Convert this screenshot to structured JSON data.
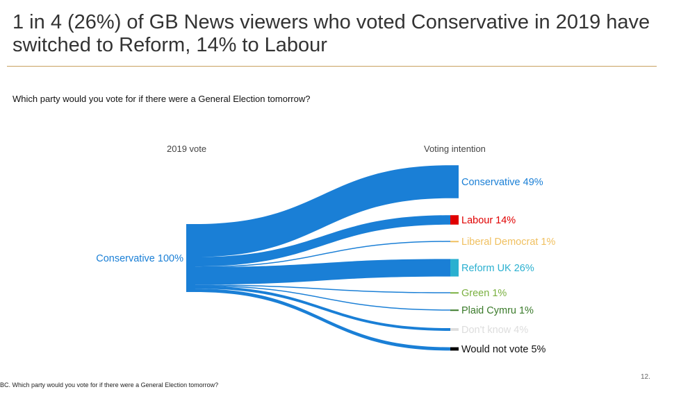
{
  "title": "1 in 4 (26%) of GB News viewers who voted Conservative in 2019 have switched to Reform, 14% to Labour",
  "question": "Which party would you vote for if there were a General Election tomorrow?",
  "footnote": "BC. Which party would you vote for if there were a General Election tomorrow?",
  "page_number": "12.",
  "chart_data": {
    "type": "sankey",
    "left_header": "2019 vote",
    "right_header": "Voting intention",
    "flow_color": "#1a7fd6",
    "source": {
      "label": "Conservative 100%",
      "name": "Conservative",
      "value": 100,
      "color": "#1a7fd6"
    },
    "targets": [
      {
        "label": "Conservative 49%",
        "name": "Conservative",
        "value": 49,
        "color": "#1a7fd6"
      },
      {
        "label": "Labour 14%",
        "name": "Labour",
        "value": 14,
        "color": "#e00000"
      },
      {
        "label": "Liberal Democrat 1%",
        "name": "Liberal Democrat",
        "value": 1,
        "color": "#f0c060"
      },
      {
        "label": "Reform UK 26%",
        "name": "Reform UK",
        "value": 26,
        "color": "#2ab0d0"
      },
      {
        "label": "Green 1%",
        "name": "Green",
        "value": 1,
        "color": "#7ab040"
      },
      {
        "label": "Plaid Cymru 1%",
        "name": "Plaid Cymru",
        "value": 1,
        "color": "#3a7a2a"
      },
      {
        "label": "Don't know 4%",
        "name": "Don't know",
        "value": 4,
        "color": "#dddddd"
      },
      {
        "label": "Would not vote 5%",
        "name": "Would not vote",
        "value": 5,
        "color": "#000000"
      }
    ]
  }
}
